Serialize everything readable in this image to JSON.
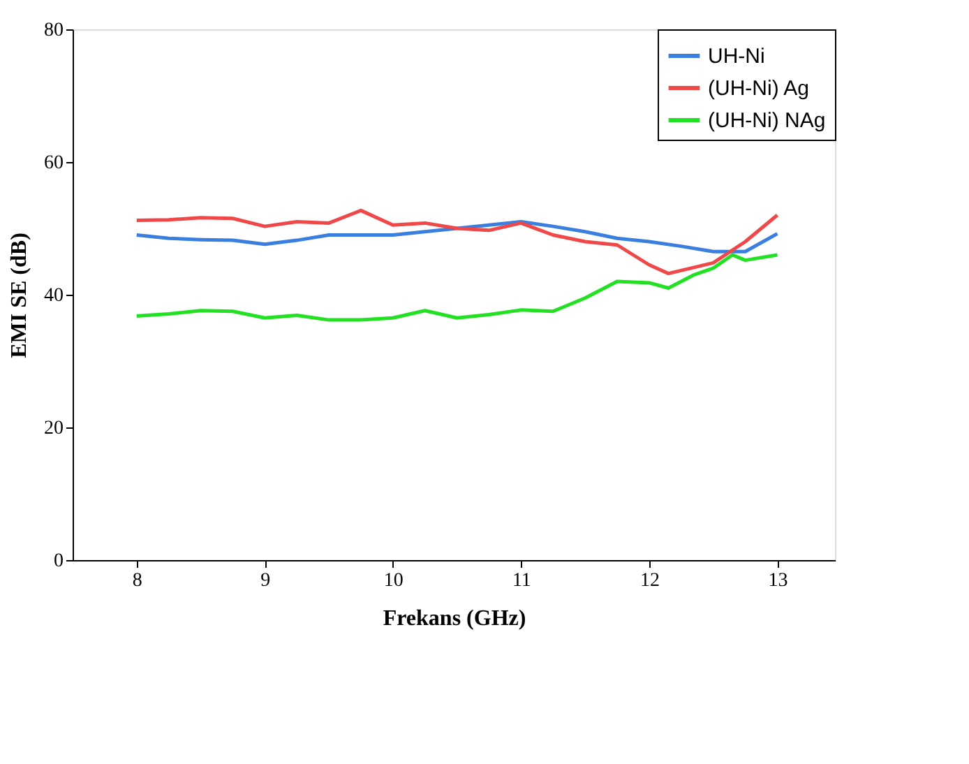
{
  "chart_data": {
    "type": "line",
    "xlabel": "Frekans (GHz)",
    "ylabel": "EMI SE (dB)",
    "xlim": [
      7.5,
      13.45
    ],
    "xticks": [
      8,
      9,
      10,
      11,
      12,
      13
    ],
    "ylim": [
      0,
      80
    ],
    "yticks": [
      0,
      20,
      40,
      60,
      80
    ],
    "grid": false,
    "legend": "top right",
    "line_style": "solid",
    "marker": "none",
    "series": [
      {
        "name": "UH-Ni",
        "color": "#3a7fe0",
        "x": [
          8,
          8.25,
          8.5,
          8.75,
          9,
          9.25,
          9.5,
          9.75,
          10,
          10.25,
          10.5,
          10.75,
          11,
          11.25,
          11.5,
          11.75,
          12,
          12.25,
          12.5,
          12.75,
          13
        ],
        "values": [
          49,
          48.5,
          48.3,
          48.2,
          47.6,
          48.2,
          49,
          49,
          49,
          49.5,
          50,
          50.5,
          51,
          50.3,
          49.5,
          48.5,
          48,
          47.3,
          46.5,
          46.5,
          49.2
        ]
      },
      {
        "name": "(UH-Ni) Ag",
        "color": "#f04848",
        "x": [
          8,
          8.25,
          8.5,
          8.75,
          9,
          9.25,
          9.5,
          9.75,
          10,
          10.25,
          10.5,
          10.75,
          11,
          11.25,
          11.5,
          11.75,
          12,
          12.15,
          12.5,
          12.75,
          13
        ],
        "values": [
          51.2,
          51.3,
          51.6,
          51.5,
          50.3,
          51,
          50.8,
          52.7,
          50.5,
          50.8,
          50,
          49.7,
          50.8,
          49,
          48,
          47.5,
          44.5,
          43.2,
          44.8,
          48,
          52
        ]
      },
      {
        "name": "(UH-Ni) NAg",
        "color": "#22e022",
        "x": [
          8,
          8.25,
          8.5,
          8.75,
          9,
          9.25,
          9.5,
          9.75,
          10,
          10.25,
          10.5,
          10.75,
          11,
          11.25,
          11.5,
          11.75,
          12,
          12.15,
          12.35,
          12.5,
          12.65,
          12.75,
          13
        ],
        "values": [
          36.8,
          37.1,
          37.6,
          37.5,
          36.5,
          36.9,
          36.2,
          36.2,
          36.5,
          37.6,
          36.5,
          37,
          37.7,
          37.5,
          39.5,
          42,
          41.8,
          41,
          43,
          44,
          46,
          45.2,
          46
        ]
      }
    ]
  }
}
